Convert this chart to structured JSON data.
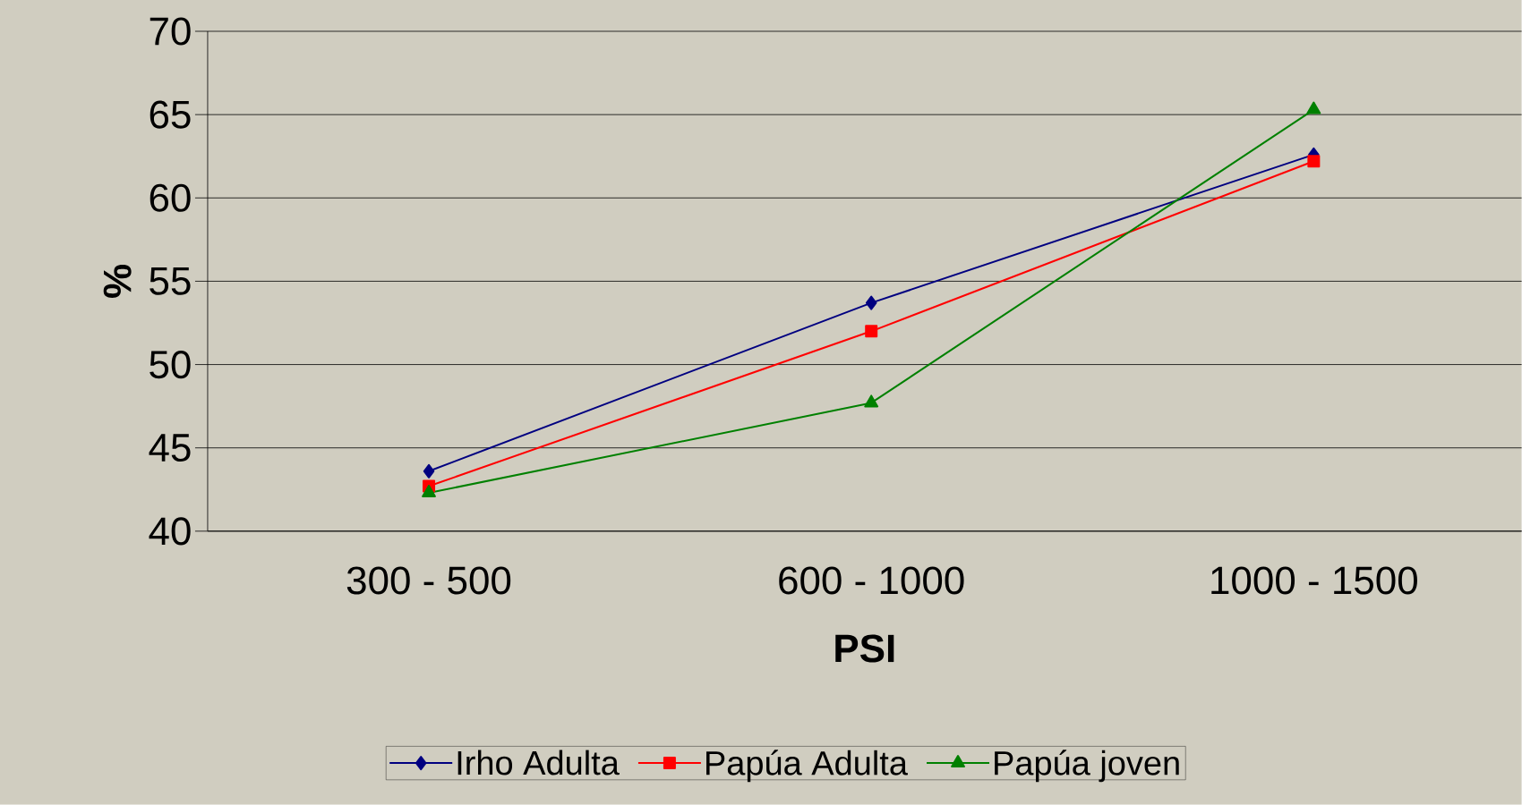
{
  "chart_data": {
    "type": "line",
    "xlabel": "PSI",
    "ylabel": "%",
    "categories": [
      "300 - 500",
      "600 - 1000",
      "1000 - 1500"
    ],
    "series": [
      {
        "name": "Irho Adulta",
        "color": "#000080",
        "marker": "diamond",
        "values": [
          43.6,
          53.7,
          62.6
        ]
      },
      {
        "name": "Papúa Adulta",
        "color": "#ff0000",
        "marker": "square",
        "values": [
          42.7,
          52.0,
          62.2
        ]
      },
      {
        "name": "Papúa joven",
        "color": "#008000",
        "marker": "triangle",
        "values": [
          42.3,
          47.7,
          65.3
        ]
      }
    ],
    "ylim": [
      40,
      70
    ],
    "yticks": [
      40,
      45,
      50,
      55,
      60,
      65,
      70
    ],
    "grid": "y",
    "legend": "bottom"
  }
}
